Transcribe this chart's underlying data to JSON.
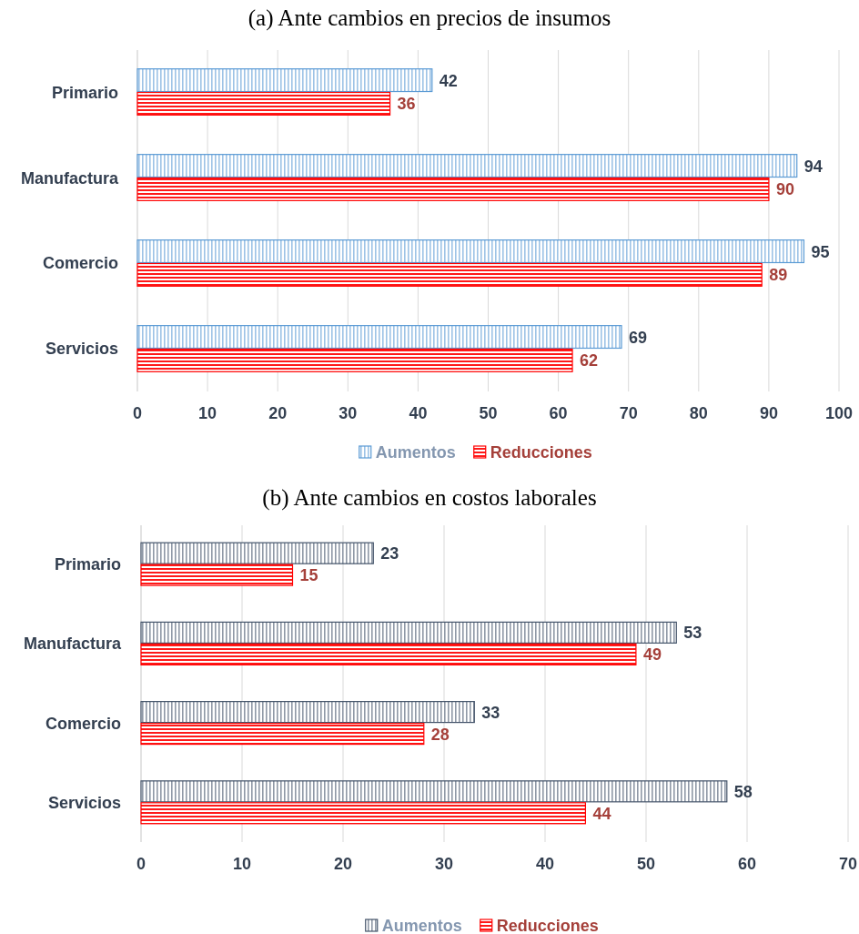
{
  "chart_data": [
    {
      "type": "bar",
      "orientation": "horizontal",
      "title": "(a) Ante cambios en precios de insumos",
      "categories": [
        "Primario",
        "Manufactura",
        "Comercio",
        "Servicios"
      ],
      "series": [
        {
          "name": "Aumentos",
          "color": "#5b9bd5",
          "values": [
            42,
            94,
            95,
            69
          ]
        },
        {
          "name": "Reducciones",
          "color": "#ff0000",
          "values": [
            36,
            90,
            89,
            62
          ]
        }
      ],
      "xlim": [
        0,
        100
      ],
      "xticks": [
        0,
        10,
        20,
        30,
        40,
        50,
        60,
        70,
        80,
        90,
        100
      ],
      "grid": "x",
      "legend": "bottom",
      "data_labels": true
    },
    {
      "type": "bar",
      "orientation": "horizontal",
      "title": "(b) Ante cambios en costos laborales",
      "categories": [
        "Primario",
        "Manufactura",
        "Comercio",
        "Servicios"
      ],
      "series": [
        {
          "name": "Aumentos",
          "color": "#44546a",
          "values": [
            23,
            53,
            33,
            58
          ]
        },
        {
          "name": "Reducciones",
          "color": "#ff0000",
          "values": [
            15,
            49,
            28,
            44
          ]
        }
      ],
      "xlim": [
        0,
        70
      ],
      "xticks": [
        0,
        10,
        20,
        30,
        40,
        50,
        60,
        70
      ],
      "grid": "x",
      "legend": "bottom",
      "data_labels": true
    }
  ]
}
